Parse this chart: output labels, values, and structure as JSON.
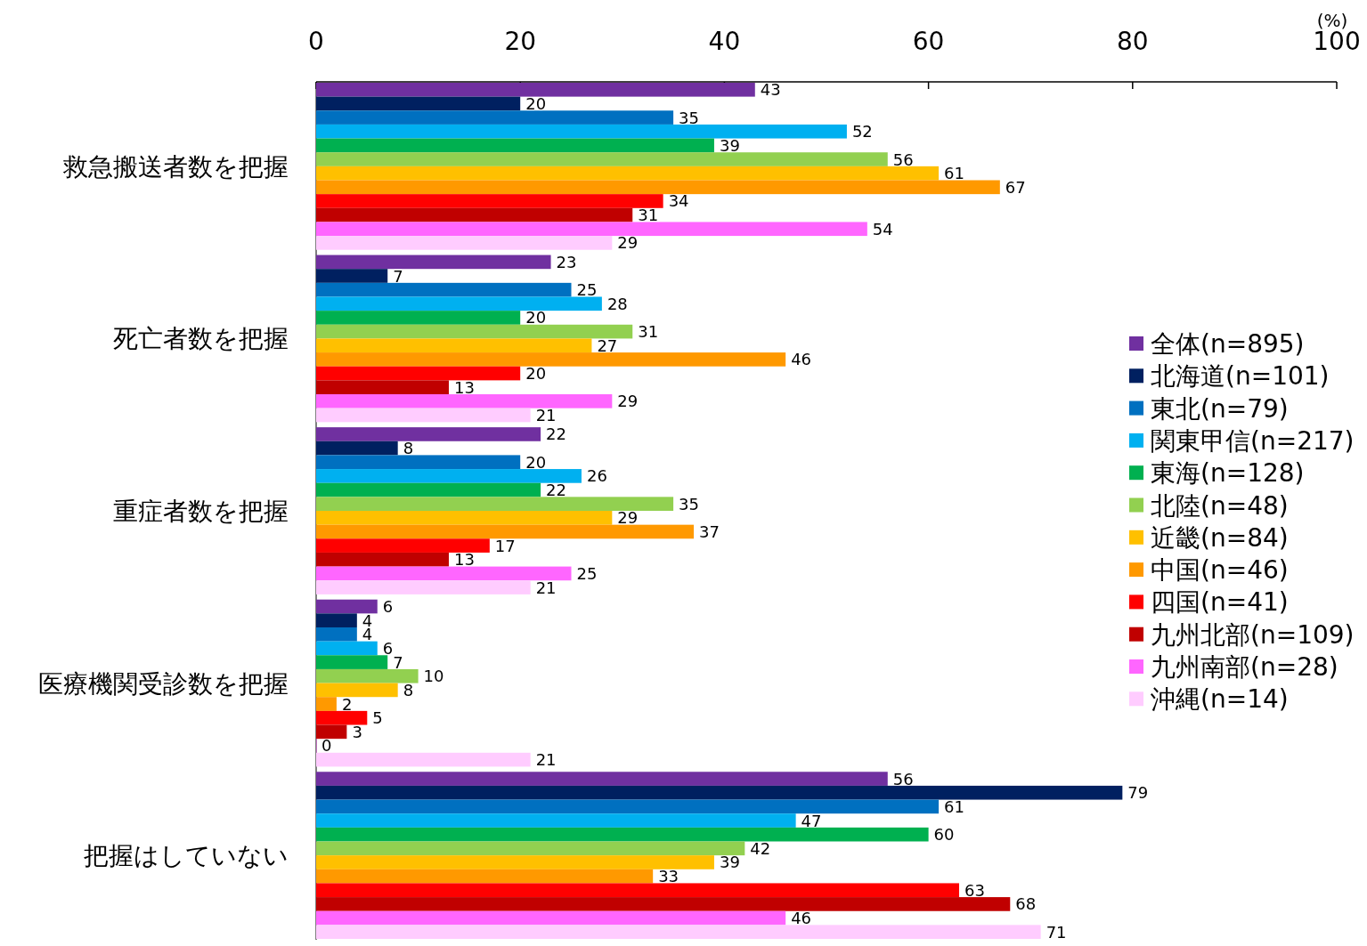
{
  "chart_data": {
    "type": "bar",
    "orientation": "horizontal",
    "xlabel": "(%)",
    "categories": [
      "救急搬送者数を把握",
      "死亡者数を把握",
      "重症者数を把握",
      "医療機関受診数を把握",
      "把握はしていない"
    ],
    "xlim": [
      0,
      100
    ],
    "xticks": [
      0,
      20,
      40,
      60,
      80,
      100
    ],
    "data_labels": true,
    "legend": "right",
    "grid": false,
    "series": [
      {
        "name": "全体(n=895)",
        "color": "#7030a0",
        "values": [
          43,
          23,
          22,
          6,
          56
        ]
      },
      {
        "name": "北海道(n=101)",
        "color": "#002060",
        "values": [
          20,
          7,
          8,
          4,
          79
        ]
      },
      {
        "name": "東北(n=79)",
        "color": "#0070c0",
        "values": [
          35,
          25,
          20,
          4,
          61
        ]
      },
      {
        "name": "関東甲信(n=217)",
        "color": "#00b0f0",
        "values": [
          52,
          28,
          26,
          6,
          47
        ]
      },
      {
        "name": "東海(n=128)",
        "color": "#00b050",
        "values": [
          39,
          20,
          22,
          7,
          60
        ]
      },
      {
        "name": "北陸(n=48)",
        "color": "#92d050",
        "values": [
          56,
          31,
          35,
          10,
          42
        ]
      },
      {
        "name": "近畿(n=84)",
        "color": "#ffc000",
        "values": [
          61,
          27,
          29,
          8,
          39
        ]
      },
      {
        "name": "中国(n=46)",
        "color": "#ff9900",
        "values": [
          67,
          46,
          37,
          2,
          33
        ]
      },
      {
        "name": "四国(n=41)",
        "color": "#ff0000",
        "values": [
          34,
          20,
          17,
          5,
          63
        ]
      },
      {
        "name": "九州北部(n=109)",
        "color": "#c00000",
        "values": [
          31,
          13,
          13,
          3,
          68
        ]
      },
      {
        "name": "九州南部(n=28)",
        "color": "#ff66ff",
        "values": [
          54,
          29,
          25,
          0,
          46
        ]
      },
      {
        "name": "沖縄(n=14)",
        "color": "#ffccff",
        "values": [
          29,
          21,
          21,
          21,
          71
        ]
      }
    ]
  }
}
